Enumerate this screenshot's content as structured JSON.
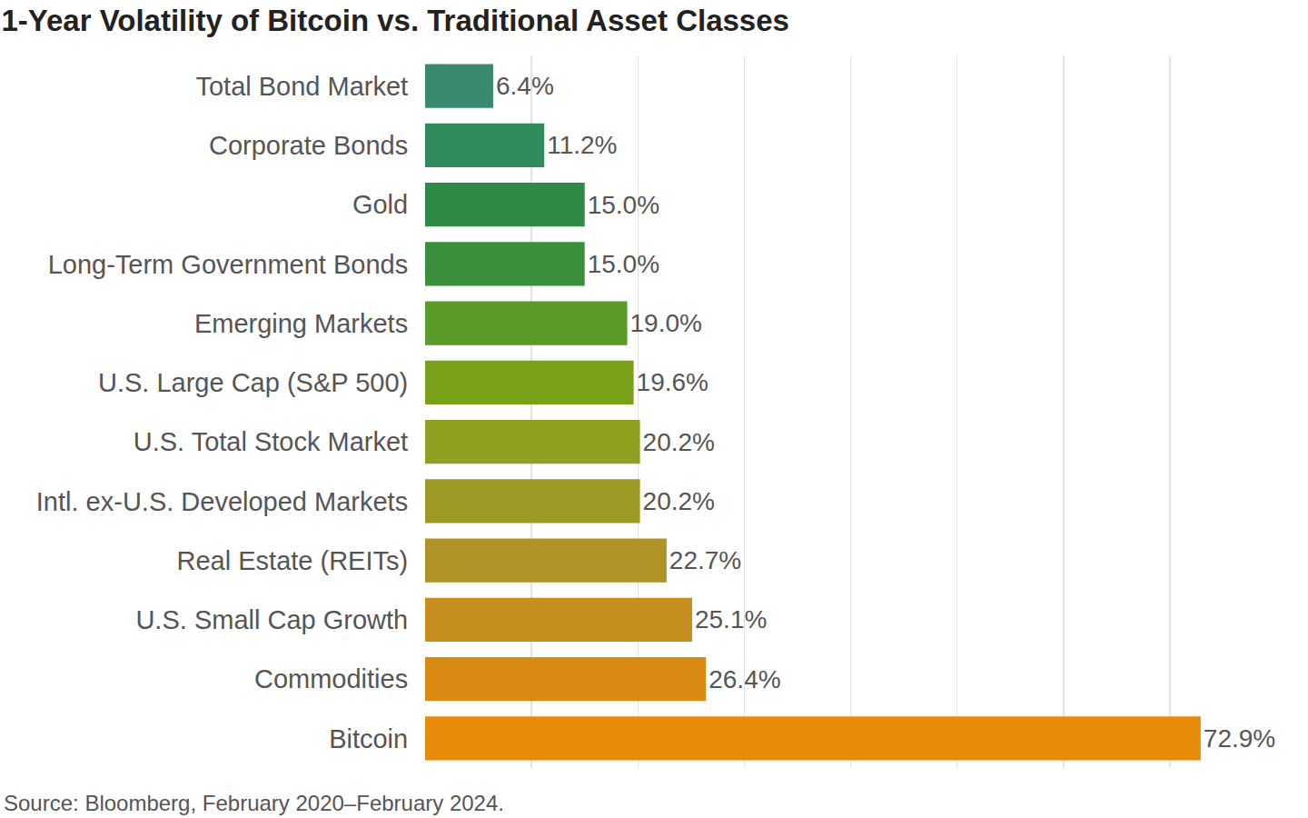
{
  "chart_data": {
    "type": "bar",
    "orientation": "horizontal",
    "title": "1-Year Volatility of Bitcoin vs. Traditional Asset Classes",
    "annotations": [
      "Source: Bloomberg, February 2020–February 2024."
    ],
    "categories": [
      "Total Bond Market",
      "Corporate Bonds",
      "Gold",
      "Long-Term Government Bonds",
      "Emerging Markets",
      "U.S. Large Cap (S&P 500)",
      "U.S. Total Stock Market",
      "Intl. ex-U.S. Developed Markets",
      "Real Estate (REITs)",
      "U.S. Small Cap Growth",
      "Commodities",
      "Bitcoin"
    ],
    "values": [
      6.4,
      11.2,
      15.0,
      15.0,
      19.0,
      19.6,
      20.2,
      20.2,
      22.7,
      25.1,
      26.4,
      72.9
    ],
    "value_labels": [
      "6.4%",
      "11.2%",
      "15.0%",
      "15.0%",
      "19.0%",
      "19.6%",
      "20.2%",
      "20.2%",
      "22.7%",
      "25.1%",
      "26.4%",
      "72.9%"
    ],
    "colors": [
      "#3a8a72",
      "#2f8a5c",
      "#2e8b45",
      "#3a8f3a",
      "#5a9a28",
      "#78a018",
      "#8f9f20",
      "#9c9a22",
      "#b09325",
      "#c68e1f",
      "#d98a12",
      "#e88a0a"
    ],
    "data_labels": true,
    "xlim": [
      0,
      80
    ],
    "xticks": [
      0,
      10,
      20,
      30,
      40,
      50,
      60,
      70,
      80
    ],
    "grid": true,
    "tick_labels": "y"
  }
}
